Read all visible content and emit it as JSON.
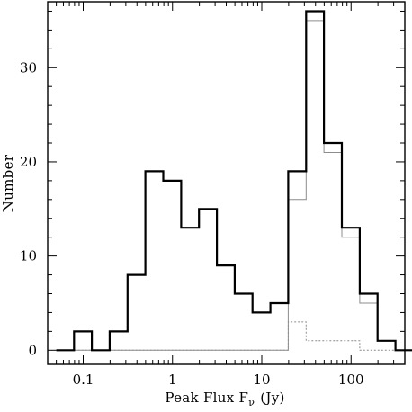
{
  "chart_data": {
    "type": "histogram",
    "xlabel": "Peak Flux F",
    "xlabel_sub": "ν",
    "xlabel_unit": "(Jy)",
    "ylabel": "Number",
    "x_scale": "log",
    "xlim": [
      0.04,
      400
    ],
    "ylim": [
      -1.5,
      37
    ],
    "x_tick_labels": [
      "0.1",
      "1",
      "10",
      "100"
    ],
    "y_tick_labels": [
      "0",
      "10",
      "20",
      "30"
    ],
    "grid": false,
    "legend": "none",
    "bin_edges": [
      0.05,
      0.079,
      0.125,
      0.198,
      0.314,
      0.497,
      0.788,
      1.25,
      1.98,
      3.14,
      4.97,
      7.88,
      12.5,
      19.8,
      31.4,
      49.7,
      78.8,
      125,
      198,
      314
    ],
    "series": [
      {
        "values": [
          0,
          2,
          0,
          2,
          8,
          19,
          18,
          13,
          15,
          9,
          6,
          4,
          5,
          19,
          36,
          22,
          13,
          6,
          1,
          0
        ],
        "style": "thick-solid",
        "color": "#000000"
      },
      {
        "values": [
          0,
          0,
          0,
          0,
          0,
          0,
          0,
          0,
          0,
          0,
          0,
          0,
          0,
          16,
          35,
          21,
          12,
          5,
          1,
          0
        ],
        "style": "thin-solid",
        "color": "#8c8c8c"
      },
      {
        "values": [
          0,
          0,
          0,
          0,
          0,
          0,
          0,
          0,
          0,
          0,
          0,
          0,
          0,
          3,
          1,
          1,
          1,
          0,
          0,
          0
        ],
        "style": "thin-dotted",
        "color": "#8c8c8c"
      }
    ]
  }
}
